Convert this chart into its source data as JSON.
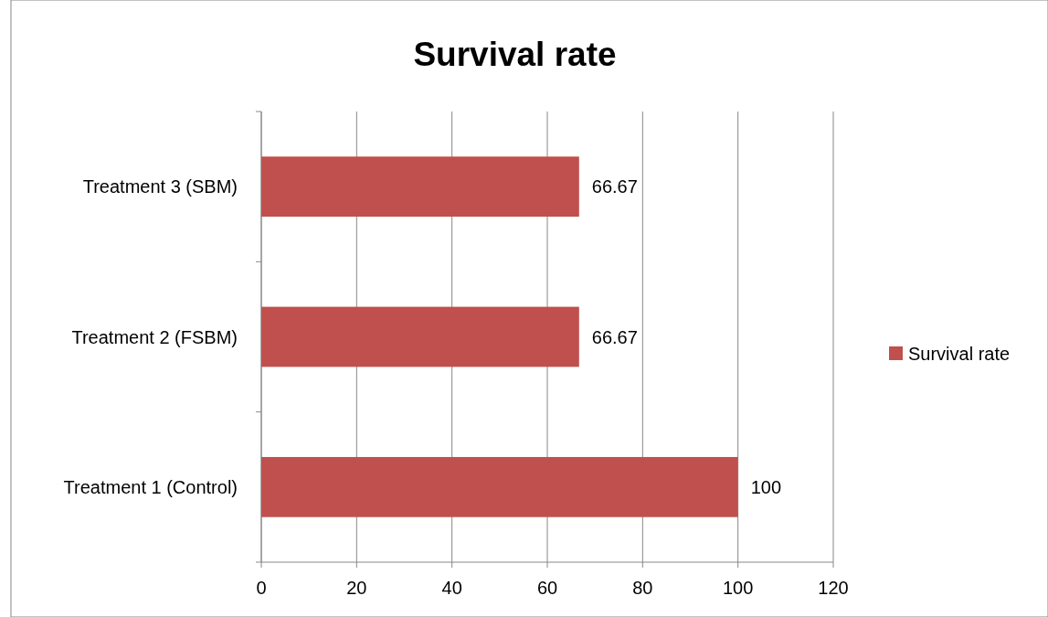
{
  "chart_data": {
    "type": "bar",
    "orientation": "horizontal",
    "title": "Survival rate",
    "categories": [
      "Treatment 3 (SBM)",
      "Treatment 2 (FSBM)",
      "Treatment 1 (Control)"
    ],
    "series": [
      {
        "name": "Survival rate",
        "color": "#c0504d",
        "values": [
          66.67,
          66.67,
          100
        ]
      }
    ],
    "xlim": [
      0,
      120
    ],
    "xticks": [
      0,
      20,
      40,
      60,
      80,
      100,
      120
    ],
    "grid": "x",
    "legend": "right",
    "data_labels": true
  }
}
